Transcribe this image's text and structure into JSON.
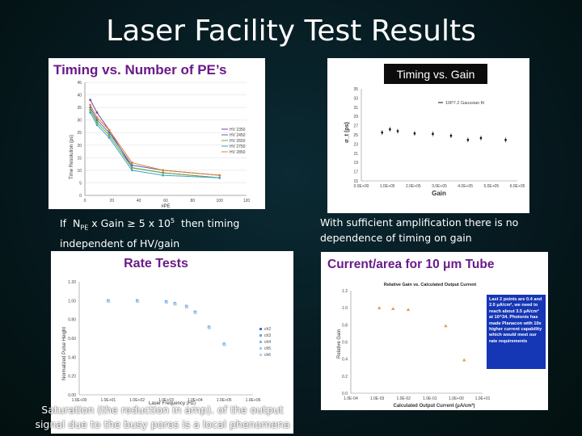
{
  "slide": {
    "title": "Laser Facility Test Results"
  },
  "captions": {
    "left": "If  N_PE x Gain ≥ 5 x 10^5  then timing independent of HV/gain",
    "right": "With sufficient amplification there is  no dependence  of timing on gain",
    "bottom": "Saturation (the reduction in amp). of the output signal due to the busy  pores is a local phenomena"
  },
  "chart_data": [
    {
      "type": "line",
      "title": "Timing vs. Number of PE’s",
      "xlabel": "#PE",
      "ylabel": "Time Resolution (ps)",
      "xlim": [
        0,
        120
      ],
      "ylim": [
        0,
        45
      ],
      "xticks": [
        0,
        20,
        40,
        60,
        80,
        100,
        120
      ],
      "yticks": [
        0,
        5,
        10,
        15,
        20,
        25,
        30,
        35,
        40,
        45
      ],
      "x": [
        4,
        9,
        18,
        35,
        58,
        100
      ],
      "series": [
        {
          "name": "HV 2350",
          "color": "#7b3fa0",
          "values": [
            38,
            33,
            26,
            11,
            9,
            7
          ]
        },
        {
          "name": "HV 2450",
          "color": "#4a6fbf",
          "values": [
            35,
            30,
            25,
            12,
            10,
            8
          ]
        },
        {
          "name": "HV 2650",
          "color": "#6fa83a",
          "values": [
            34,
            29,
            24,
            11,
            9,
            7
          ]
        },
        {
          "name": "HV 2750",
          "color": "#3aa7c9",
          "values": [
            33,
            28,
            23,
            10,
            8,
            7
          ]
        },
        {
          "name": "HV 2850",
          "color": "#e07b2a",
          "values": [
            36,
            31,
            26,
            13,
            10,
            8
          ]
        }
      ]
    },
    {
      "type": "scatter",
      "title": "Timing vs. Gain",
      "xlabel": "Gain",
      "ylabel": "σ_t (ps)",
      "legend": [
        "10P7.2 Gaussian fit"
      ],
      "xlim": [
        0,
        600000
      ],
      "ylim": [
        15,
        35
      ],
      "xticks": [
        "0.0E+00",
        "1.0E+05",
        "2.0E+05",
        "3.0E+05",
        "4.0E+05",
        "5.0E+05",
        "6.0E+05"
      ],
      "yticks": [
        15,
        17,
        19,
        21,
        23,
        25,
        27,
        29,
        31,
        33,
        35
      ],
      "x": [
        80000,
        110000,
        140000,
        205000,
        275000,
        345000,
        410000,
        460000,
        555000
      ],
      "values": [
        25.5,
        26.2,
        25.8,
        25.3,
        25.2,
        24.8,
        23.9,
        24.3,
        23.9
      ]
    },
    {
      "type": "scatter",
      "title": "Rate Tests",
      "xlabel": "Laser Frequency (Hz)",
      "ylabel": "Normalized Pulse Height",
      "xscale": "log",
      "xlim": [
        1,
        1000000
      ],
      "ylim": [
        0,
        1.2
      ],
      "xticks": [
        "1.0E+00",
        "1.0E+01",
        "1.0E+02",
        "1.0E+03",
        "1.0E+04",
        "1.0E+05",
        "1.0E+06"
      ],
      "yticks": [
        "0.00",
        "0.20",
        "0.40",
        "0.60",
        "0.80",
        "1.00",
        "1.20"
      ],
      "legend": [
        "ch2",
        "ch3",
        "ch4",
        "ch5",
        "ch6"
      ],
      "x": [
        10,
        100,
        1000,
        2000,
        5000,
        10000,
        30000,
        100000
      ],
      "values": [
        1.0,
        1.0,
        0.99,
        0.97,
        0.94,
        0.88,
        0.72,
        0.54
      ]
    },
    {
      "type": "scatter",
      "title": "Current/area for 10 μm Tube",
      "subtitle": "Relative Gain vs. Calculated Output Current",
      "xlabel": "Calculated Output Current (μA/cm²)",
      "ylabel": "Relative Gain",
      "xscale": "log",
      "xlim": [
        0.0001,
        10
      ],
      "ylim": [
        0,
        1.2
      ],
      "xticks": [
        "1.0E-04",
        "1.0E-03",
        "1.0E-02",
        "1.0E-01",
        "1.0E+00",
        "1.0E+01"
      ],
      "yticks": [
        "0.0",
        "0.2",
        "0.4",
        "0.6",
        "0.8",
        "1.0",
        "1.2"
      ],
      "x": [
        0.0012,
        0.004,
        0.015,
        0.4,
        2.0
      ],
      "values": [
        1.0,
        0.99,
        0.98,
        0.79,
        0.39
      ],
      "annotation": "Last 2 points are 0.4 and 2.0 μA/cm², we need to reach about 3.5 μA/cm² at 10^34. Photonis has made Planacon with 10x higher current capability which would meet our rate requirements"
    }
  ]
}
